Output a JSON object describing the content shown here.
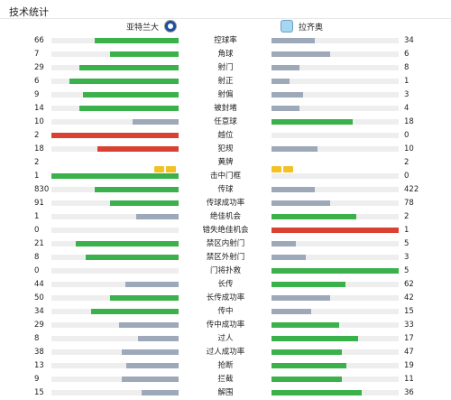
{
  "page_title": "技术统计",
  "home_team": {
    "name": "亚特兰大",
    "badge_icon": "atalanta-badge-icon"
  },
  "away_team": {
    "name": "拉齐奥",
    "badge_icon": "lazio-badge-icon"
  },
  "colors": {
    "leader": "#3ab14a",
    "trailer": "#9da8b8",
    "red": "#d94132",
    "yellow": "#f2c124",
    "track": "#eeeeee"
  },
  "stats": [
    {
      "label": "控球率",
      "home": "66",
      "away": "34",
      "home_pct": 66,
      "away_pct": 34,
      "home_color": "green",
      "away_color": "gray"
    },
    {
      "label": "角球",
      "home": "7",
      "away": "6",
      "home_pct": 54,
      "away_pct": 46,
      "home_color": "green",
      "away_color": "gray"
    },
    {
      "label": "射门",
      "home": "29",
      "away": "8",
      "home_pct": 78,
      "away_pct": 22,
      "home_color": "green",
      "away_color": "gray"
    },
    {
      "label": "射正",
      "home": "6",
      "away": "1",
      "home_pct": 86,
      "away_pct": 14,
      "home_color": "green",
      "away_color": "gray"
    },
    {
      "label": "射偏",
      "home": "9",
      "away": "3",
      "home_pct": 75,
      "away_pct": 25,
      "home_color": "green",
      "away_color": "gray"
    },
    {
      "label": "被封堵",
      "home": "14",
      "away": "4",
      "home_pct": 78,
      "away_pct": 22,
      "home_color": "green",
      "away_color": "gray"
    },
    {
      "label": "任意球",
      "home": "10",
      "away": "18",
      "home_pct": 36,
      "away_pct": 64,
      "home_color": "gray",
      "away_color": "green"
    },
    {
      "label": "越位",
      "home": "2",
      "away": "0",
      "home_pct": 100,
      "away_pct": 0,
      "home_color": "red",
      "away_color": "gray"
    },
    {
      "label": "犯规",
      "home": "18",
      "away": "10",
      "home_pct": 64,
      "away_pct": 36,
      "home_color": "red",
      "away_color": "gray"
    },
    {
      "label": "黄牌",
      "home": "2",
      "away": "2",
      "home_pct": 0,
      "away_pct": 0,
      "home_color": "gray",
      "away_color": "gray",
      "home_cards": 2,
      "away_cards": 2
    },
    {
      "label": "击中门框",
      "home": "1",
      "away": "0",
      "home_pct": 100,
      "away_pct": 0,
      "home_color": "green",
      "away_color": "gray"
    },
    {
      "label": "传球",
      "home": "830",
      "away": "422",
      "home_pct": 66,
      "away_pct": 34,
      "home_color": "green",
      "away_color": "gray"
    },
    {
      "label": "传球成功率",
      "home": "91",
      "away": "78",
      "home_pct": 54,
      "away_pct": 46,
      "home_color": "green",
      "away_color": "gray"
    },
    {
      "label": "绝佳机会",
      "home": "1",
      "away": "2",
      "home_pct": 33,
      "away_pct": 67,
      "home_color": "gray",
      "away_color": "green"
    },
    {
      "label": "错失绝佳机会",
      "home": "0",
      "away": "1",
      "home_pct": 0,
      "away_pct": 100,
      "home_color": "gray",
      "away_color": "red"
    },
    {
      "label": "禁区内射门",
      "home": "21",
      "away": "5",
      "home_pct": 81,
      "away_pct": 19,
      "home_color": "green",
      "away_color": "gray"
    },
    {
      "label": "禁区外射门",
      "home": "8",
      "away": "3",
      "home_pct": 73,
      "away_pct": 27,
      "home_color": "green",
      "away_color": "gray"
    },
    {
      "label": "门将扑救",
      "home": "0",
      "away": "5",
      "home_pct": 0,
      "away_pct": 100,
      "home_color": "gray",
      "away_color": "green"
    },
    {
      "label": "长传",
      "home": "44",
      "away": "62",
      "home_pct": 42,
      "away_pct": 58,
      "home_color": "gray",
      "away_color": "green"
    },
    {
      "label": "长传成功率",
      "home": "50",
      "away": "42",
      "home_pct": 54,
      "away_pct": 46,
      "home_color": "green",
      "away_color": "gray"
    },
    {
      "label": "传中",
      "home": "34",
      "away": "15",
      "home_pct": 69,
      "away_pct": 31,
      "home_color": "green",
      "away_color": "gray"
    },
    {
      "label": "传中成功率",
      "home": "29",
      "away": "33",
      "home_pct": 47,
      "away_pct": 53,
      "home_color": "gray",
      "away_color": "green"
    },
    {
      "label": "过人",
      "home": "8",
      "away": "17",
      "home_pct": 32,
      "away_pct": 68,
      "home_color": "gray",
      "away_color": "green"
    },
    {
      "label": "过人成功率",
      "home": "38",
      "away": "47",
      "home_pct": 45,
      "away_pct": 55,
      "home_color": "gray",
      "away_color": "green"
    },
    {
      "label": "抢断",
      "home": "13",
      "away": "19",
      "home_pct": 41,
      "away_pct": 59,
      "home_color": "gray",
      "away_color": "green"
    },
    {
      "label": "拦截",
      "home": "9",
      "away": "11",
      "home_pct": 45,
      "away_pct": 55,
      "home_color": "gray",
      "away_color": "green"
    },
    {
      "label": "解围",
      "home": "15",
      "away": "36",
      "home_pct": 29,
      "away_pct": 71,
      "home_color": "gray",
      "away_color": "green"
    }
  ]
}
